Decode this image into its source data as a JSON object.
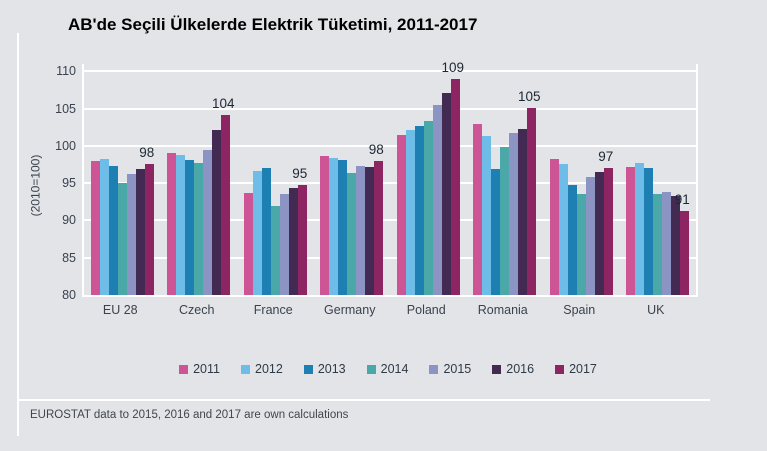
{
  "title": "AB'de Seçili Ülkelerde Elektrik Tüketimi, 2011-2017",
  "y_axis_label": "(2010=100)",
  "footnote": "EUROSTAT data to 2015, 2016 and 2017 are own calculations",
  "colors": {
    "background": "#e3e4e8",
    "gridline": "#ffffff",
    "axis_text": "#39424e",
    "value_label_text": "#1d2732",
    "title_text": "#000000",
    "footnote_text": "#41454c"
  },
  "chart_data": {
    "type": "bar",
    "title": "AB'de Seçili Ülkelerde Elektrik Tüketimi, 2011-2017",
    "ylabel": "(2010=100)",
    "ylim": [
      80,
      111
    ],
    "yticks": [
      80,
      85,
      90,
      95,
      100,
      105,
      110
    ],
    "grid": true,
    "legend_position": "bottom",
    "categories": [
      "EU 28",
      "Czech",
      "France",
      "Germany",
      "Poland",
      "Romania",
      "Spain",
      "UK"
    ],
    "series": [
      {
        "name": "2011",
        "color": "#cd5596",
        "values": [
          98.0,
          99.0,
          93.7,
          98.6,
          101.5,
          103.0,
          98.3,
          97.2
        ]
      },
      {
        "name": "2012",
        "color": "#6ebde8",
        "values": [
          98.3,
          98.8,
          96.7,
          98.4,
          102.2,
          101.3,
          97.6,
          97.7
        ]
      },
      {
        "name": "2013",
        "color": "#1d7fb2",
        "values": [
          97.3,
          98.1,
          97.0,
          98.1,
          102.7,
          96.9,
          94.8,
          97.1
        ]
      },
      {
        "name": "2014",
        "color": "#4aa8a8",
        "values": [
          95.0,
          97.7,
          92.0,
          96.4,
          103.4,
          99.8,
          93.6,
          93.5
        ]
      },
      {
        "name": "2015",
        "color": "#8c94c4",
        "values": [
          96.3,
          99.5,
          93.6,
          97.3,
          105.5,
          101.7,
          95.9,
          93.8
        ]
      },
      {
        "name": "2016",
        "color": "#422a52",
        "values": [
          96.9,
          102.2,
          94.3,
          97.2,
          107.1,
          102.3,
          96.5,
          93.3
        ]
      },
      {
        "name": "2017",
        "color": "#8e2563",
        "values": [
          97.6,
          104.1,
          94.7,
          98.0,
          109.0,
          105.1,
          97.1,
          91.3
        ]
      }
    ],
    "bar_labels": {
      "labeled_series": "2017",
      "values": [
        "98",
        "104",
        "95",
        "98",
        "109",
        "105",
        "97",
        "91"
      ]
    }
  }
}
